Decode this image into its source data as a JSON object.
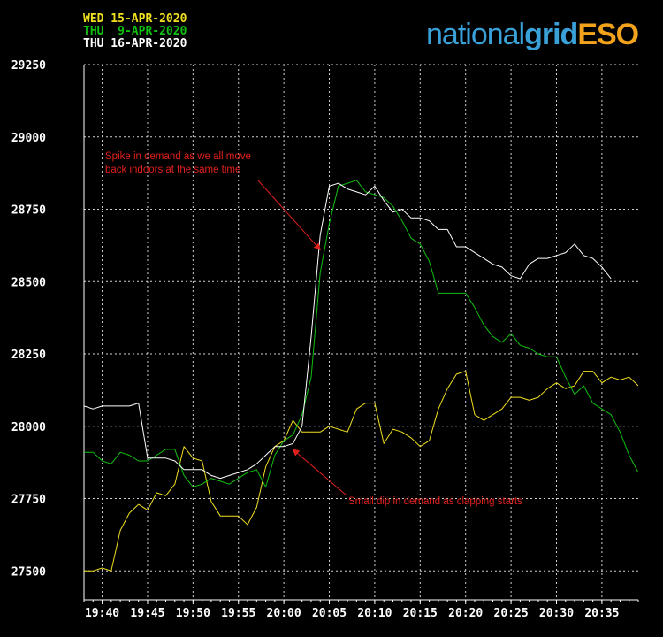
{
  "chart_data": {
    "type": "line",
    "title": "",
    "xlabel": "",
    "ylabel": "",
    "ylim": [
      27400,
      29250
    ],
    "xlim": [
      "19:38",
      "20:39"
    ],
    "grid": true,
    "legend_position": "top-left",
    "yticks": [
      27500,
      27750,
      28000,
      28250,
      28500,
      28750,
      29000,
      29250
    ],
    "xtick_labels": [
      "19:40",
      "19:45",
      "19:50",
      "19:55",
      "20:00",
      "20:05",
      "20:10",
      "20:15",
      "20:20",
      "20:25",
      "20:30",
      "20:35"
    ],
    "series": [
      {
        "name": "WED 15-APR-2020",
        "color": "#f0e020",
        "points": [
          [
            "19:38",
            27500
          ],
          [
            "19:39",
            27500
          ],
          [
            "19:40",
            27510
          ],
          [
            "19:41",
            27500
          ],
          [
            "19:42",
            27640
          ],
          [
            "19:43",
            27700
          ],
          [
            "19:44",
            27730
          ],
          [
            "19:45",
            27710
          ],
          [
            "19:46",
            27770
          ],
          [
            "19:47",
            27760
          ],
          [
            "19:48",
            27800
          ],
          [
            "19:49",
            27930
          ],
          [
            "19:50",
            27890
          ],
          [
            "19:51",
            27880
          ],
          [
            "19:52",
            27740
          ],
          [
            "19:53",
            27690
          ],
          [
            "19:54",
            27690
          ],
          [
            "19:55",
            27690
          ],
          [
            "19:56",
            27660
          ],
          [
            "19:57",
            27720
          ],
          [
            "19:58",
            27860
          ],
          [
            "19:59",
            27930
          ],
          [
            "20:00",
            27950
          ],
          [
            "20:01",
            28020
          ],
          [
            "20:02",
            27980
          ],
          [
            "20:03",
            27980
          ],
          [
            "20:04",
            27980
          ],
          [
            "20:05",
            28000
          ],
          [
            "20:06",
            27990
          ],
          [
            "20:07",
            27980
          ],
          [
            "20:08",
            28060
          ],
          [
            "20:09",
            28080
          ],
          [
            "20:10",
            28080
          ],
          [
            "20:11",
            27940
          ],
          [
            "20:12",
            27990
          ],
          [
            "20:13",
            27980
          ],
          [
            "20:14",
            27960
          ],
          [
            "20:15",
            27930
          ],
          [
            "20:16",
            27950
          ],
          [
            "20:17",
            28060
          ],
          [
            "20:18",
            28130
          ],
          [
            "20:19",
            28180
          ],
          [
            "20:20",
            28190
          ],
          [
            "20:21",
            28040
          ],
          [
            "20:22",
            28020
          ],
          [
            "20:23",
            28040
          ],
          [
            "20:24",
            28060
          ],
          [
            "20:25",
            28100
          ],
          [
            "20:26",
            28100
          ],
          [
            "20:27",
            28090
          ],
          [
            "20:28",
            28100
          ],
          [
            "20:29",
            28130
          ],
          [
            "20:30",
            28150
          ],
          [
            "20:31",
            28130
          ],
          [
            "20:32",
            28140
          ],
          [
            "20:33",
            28190
          ],
          [
            "20:34",
            28190
          ],
          [
            "20:35",
            28150
          ],
          [
            "20:36",
            28170
          ],
          [
            "20:37",
            28160
          ],
          [
            "20:38",
            28170
          ],
          [
            "20:39",
            28140
          ]
        ]
      },
      {
        "name": "THU  9-APR-2020",
        "color": "#10c010",
        "points": [
          [
            "19:38",
            27910
          ],
          [
            "19:39",
            27910
          ],
          [
            "19:40",
            27880
          ],
          [
            "19:41",
            27870
          ],
          [
            "19:42",
            27910
          ],
          [
            "19:43",
            27900
          ],
          [
            "19:44",
            27880
          ],
          [
            "19:45",
            27880
          ],
          [
            "19:46",
            27900
          ],
          [
            "19:47",
            27920
          ],
          [
            "19:48",
            27920
          ],
          [
            "19:49",
            27830
          ],
          [
            "19:50",
            27790
          ],
          [
            "19:51",
            27800
          ],
          [
            "19:52",
            27820
          ],
          [
            "19:53",
            27810
          ],
          [
            "19:54",
            27800
          ],
          [
            "19:55",
            27820
          ],
          [
            "19:56",
            27840
          ],
          [
            "19:57",
            27850
          ],
          [
            "19:58",
            27790
          ],
          [
            "19:59",
            27900
          ],
          [
            "20:00",
            27950
          ],
          [
            "20:01",
            27970
          ],
          [
            "20:02",
            28040
          ],
          [
            "20:03",
            28170
          ],
          [
            "20:04",
            28530
          ],
          [
            "20:05",
            28700
          ],
          [
            "20:06",
            28830
          ],
          [
            "20:07",
            28840
          ],
          [
            "20:08",
            28850
          ],
          [
            "20:09",
            28810
          ],
          [
            "20:10",
            28800
          ],
          [
            "20:11",
            28790
          ],
          [
            "20:12",
            28760
          ],
          [
            "20:13",
            28710
          ],
          [
            "20:14",
            28650
          ],
          [
            "20:15",
            28630
          ],
          [
            "20:16",
            28570
          ],
          [
            "20:17",
            28460
          ],
          [
            "20:18",
            28460
          ],
          [
            "20:19",
            28460
          ],
          [
            "20:20",
            28460
          ],
          [
            "20:21",
            28410
          ],
          [
            "20:22",
            28350
          ],
          [
            "20:23",
            28310
          ],
          [
            "20:24",
            28290
          ],
          [
            "20:25",
            28320
          ],
          [
            "20:26",
            28280
          ],
          [
            "20:27",
            28270
          ],
          [
            "20:28",
            28250
          ],
          [
            "20:29",
            28240
          ],
          [
            "20:30",
            28240
          ],
          [
            "20:31",
            28170
          ],
          [
            "20:32",
            28110
          ],
          [
            "20:33",
            28140
          ],
          [
            "20:34",
            28080
          ],
          [
            "20:35",
            28060
          ],
          [
            "20:36",
            28040
          ],
          [
            "20:37",
            27980
          ],
          [
            "20:38",
            27900
          ],
          [
            "20:39",
            27840
          ]
        ]
      },
      {
        "name": "THU 16-APR-2020",
        "color": "#ffffff",
        "points": [
          [
            "19:38",
            28070
          ],
          [
            "19:39",
            28060
          ],
          [
            "19:40",
            28070
          ],
          [
            "19:41",
            28070
          ],
          [
            "19:42",
            28070
          ],
          [
            "19:43",
            28070
          ],
          [
            "19:44",
            28080
          ],
          [
            "19:45",
            27890
          ],
          [
            "19:46",
            27890
          ],
          [
            "19:47",
            27890
          ],
          [
            "19:48",
            27880
          ],
          [
            "19:49",
            27850
          ],
          [
            "19:50",
            27850
          ],
          [
            "19:51",
            27850
          ],
          [
            "19:52",
            27830
          ],
          [
            "19:53",
            27820
          ],
          [
            "19:54",
            27830
          ],
          [
            "19:55",
            27840
          ],
          [
            "19:56",
            27850
          ],
          [
            "19:57",
            27870
          ],
          [
            "19:58",
            27900
          ],
          [
            "19:59",
            27930
          ],
          [
            "20:00",
            27930
          ],
          [
            "20:01",
            27940
          ],
          [
            "20:02",
            28000
          ],
          [
            "20:03",
            28310
          ],
          [
            "20:04",
            28660
          ],
          [
            "20:05",
            28830
          ],
          [
            "20:06",
            28840
          ],
          [
            "20:07",
            28820
          ],
          [
            "20:08",
            28810
          ],
          [
            "20:09",
            28800
          ],
          [
            "20:10",
            28830
          ],
          [
            "20:11",
            28780
          ],
          [
            "20:12",
            28740
          ],
          [
            "20:13",
            28750
          ],
          [
            "20:14",
            28720
          ],
          [
            "20:15",
            28720
          ],
          [
            "20:16",
            28710
          ],
          [
            "20:17",
            28680
          ],
          [
            "20:18",
            28680
          ],
          [
            "20:19",
            28620
          ],
          [
            "20:20",
            28620
          ],
          [
            "20:21",
            28600
          ],
          [
            "20:22",
            28580
          ],
          [
            "20:23",
            28560
          ],
          [
            "20:24",
            28550
          ],
          [
            "20:25",
            28520
          ],
          [
            "20:26",
            28510
          ],
          [
            "20:27",
            28560
          ],
          [
            "20:28",
            28580
          ],
          [
            "20:29",
            28580
          ],
          [
            "20:30",
            28590
          ],
          [
            "20:31",
            28600
          ],
          [
            "20:32",
            28630
          ],
          [
            "20:33",
            28590
          ],
          [
            "20:34",
            28580
          ],
          [
            "20:35",
            28550
          ],
          [
            "20:36",
            28510
          ]
        ]
      }
    ],
    "annotations": [
      {
        "text_lines": [
          "Spike in demand as we all move",
          "back indoors at the same time"
        ],
        "color": "#e0201c",
        "arrow_to": [
          "20:04",
          28610
        ]
      },
      {
        "text_lines": [
          "Small dip in demand as clapping starts"
        ],
        "color": "#e0201c",
        "arrow_to": [
          "20:01",
          27920
        ]
      }
    ]
  },
  "logo": {
    "part1": "national",
    "part2": "grid",
    "part3": "ESO"
  }
}
